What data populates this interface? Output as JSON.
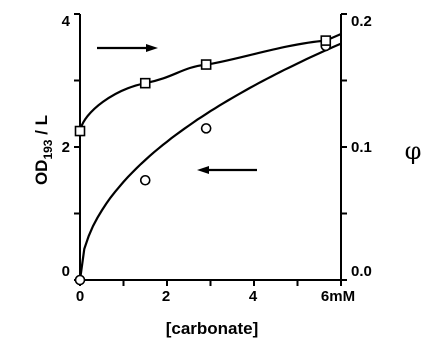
{
  "chart_data": {
    "type": "line",
    "xlabel": "[carbonate]",
    "x_unit_label": "6mM",
    "ylabel": "OD",
    "ylabel_subscript": "193",
    "ylabel_suffix": " / L",
    "y2label": "φ",
    "xlim": [
      0,
      6
    ],
    "ylim": [
      0,
      4
    ],
    "y2lim": [
      0,
      0.2
    ],
    "x_ticks": [
      0,
      1,
      2,
      3,
      4,
      5,
      6
    ],
    "x_tick_labels": [
      "0",
      "2",
      "4"
    ],
    "y_tick_labels": [
      "0",
      "2",
      "4"
    ],
    "y2_tick_labels": [
      "0.0",
      "0.1",
      "0.2"
    ],
    "grid": false,
    "series": [
      {
        "axis": "left",
        "marker": "circle",
        "arrow": "left",
        "points": [
          [
            0,
            0
          ],
          [
            1.5,
            1.5
          ],
          [
            2.9,
            2.28
          ],
          [
            5.65,
            3.52
          ]
        ],
        "curve_end": [
          6.0,
          3.7
        ]
      },
      {
        "axis": "right",
        "marker": "square",
        "arrow": "right",
        "points": [
          [
            0,
            0.112
          ],
          [
            1.5,
            0.148
          ],
          [
            2.9,
            0.162
          ],
          [
            5.65,
            0.18
          ]
        ],
        "curve_end": [
          6.0,
          0.185
        ]
      }
    ]
  }
}
